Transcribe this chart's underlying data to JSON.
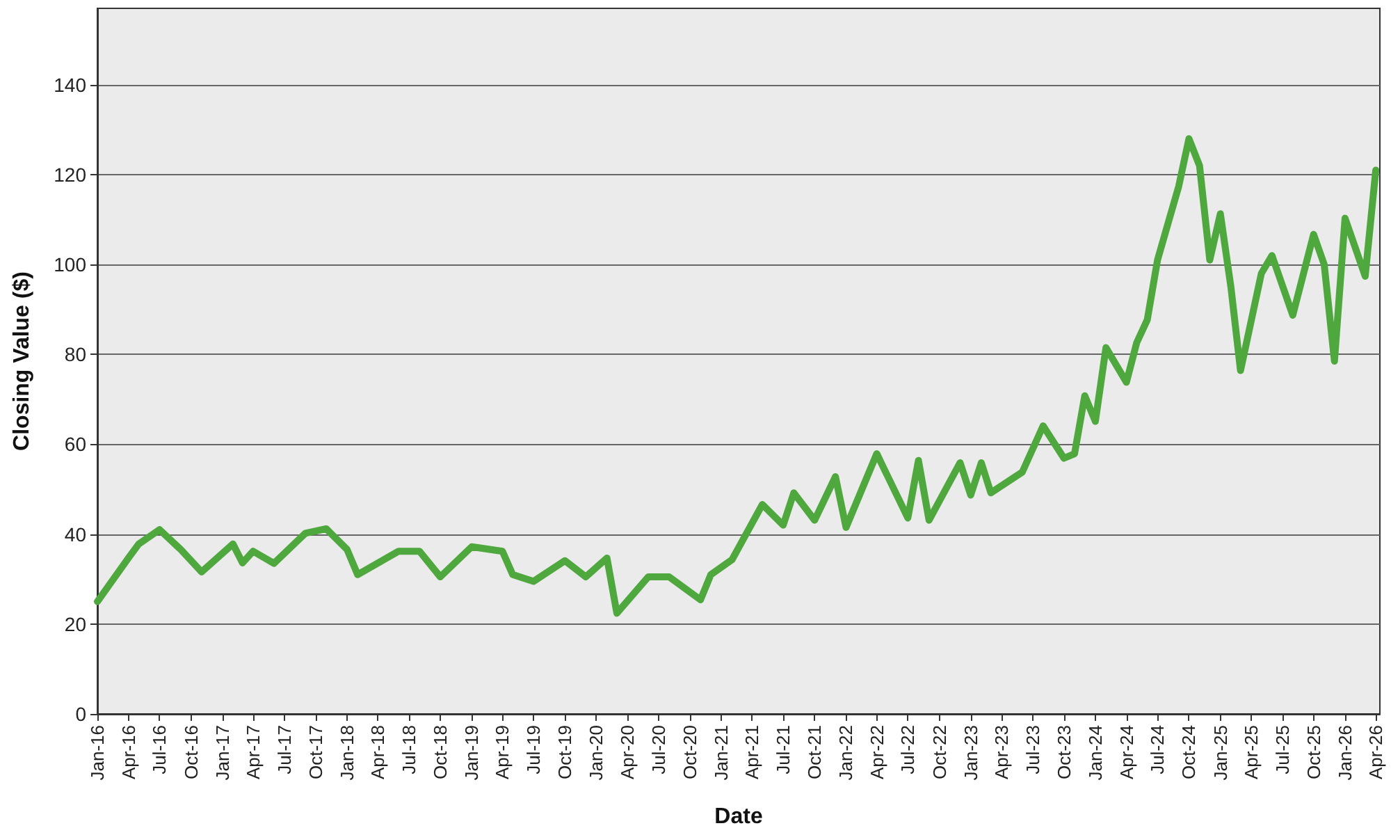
{
  "chart_data": {
    "type": "line",
    "xlabel": "Date",
    "ylabel": "Closing Value ($)",
    "grid": "y",
    "marker": "none",
    "line_style": "solid",
    "xlim": [
      "2016-01-01",
      "2026-04-13"
    ],
    "ylim": [
      0,
      157
    ],
    "yticks": [
      0,
      20,
      40,
      60,
      80,
      100,
      120,
      140
    ],
    "xticks": [
      {
        "value": "2016-01-01",
        "label": "Jan-16"
      },
      {
        "value": "2016-04-01",
        "label": "Apr-16"
      },
      {
        "value": "2016-07-01",
        "label": "Jul-16"
      },
      {
        "value": "2016-10-01",
        "label": "Oct-16"
      },
      {
        "value": "2017-01-01",
        "label": "Jan-17"
      },
      {
        "value": "2017-04-01",
        "label": "Apr-17"
      },
      {
        "value": "2017-07-01",
        "label": "Jul-17"
      },
      {
        "value": "2017-10-01",
        "label": "Oct-17"
      },
      {
        "value": "2018-01-01",
        "label": "Jan-18"
      },
      {
        "value": "2018-04-01",
        "label": "Apr-18"
      },
      {
        "value": "2018-07-01",
        "label": "Jul-18"
      },
      {
        "value": "2018-10-01",
        "label": "Oct-18"
      },
      {
        "value": "2019-01-01",
        "label": "Jan-19"
      },
      {
        "value": "2019-04-01",
        "label": "Apr-19"
      },
      {
        "value": "2019-07-01",
        "label": "Jul-19"
      },
      {
        "value": "2019-10-01",
        "label": "Oct-19"
      },
      {
        "value": "2020-01-01",
        "label": "Jan-20"
      },
      {
        "value": "2020-04-01",
        "label": "Apr-20"
      },
      {
        "value": "2020-07-01",
        "label": "Jul-20"
      },
      {
        "value": "2020-10-01",
        "label": "Oct-20"
      },
      {
        "value": "2021-01-01",
        "label": "Jan-21"
      },
      {
        "value": "2021-04-01",
        "label": "Apr-21"
      },
      {
        "value": "2021-07-01",
        "label": "Jul-21"
      },
      {
        "value": "2021-10-01",
        "label": "Oct-21"
      },
      {
        "value": "2022-01-01",
        "label": "Jan-22"
      },
      {
        "value": "2022-04-01",
        "label": "Apr-22"
      },
      {
        "value": "2022-07-01",
        "label": "Jul-22"
      },
      {
        "value": "2022-10-01",
        "label": "Oct-22"
      },
      {
        "value": "2023-01-01",
        "label": "Jan-23"
      },
      {
        "value": "2023-04-01",
        "label": "Apr-23"
      },
      {
        "value": "2023-07-01",
        "label": "Jul-23"
      },
      {
        "value": "2023-10-01",
        "label": "Oct-23"
      },
      {
        "value": "2024-01-01",
        "label": "Jan-24"
      },
      {
        "value": "2024-04-01",
        "label": "Apr-24"
      },
      {
        "value": "2024-07-01",
        "label": "Jul-24"
      },
      {
        "value": "2024-10-01",
        "label": "Oct-24"
      },
      {
        "value": "2025-01-01",
        "label": "Jan-25"
      },
      {
        "value": "2025-04-01",
        "label": "Apr-25"
      },
      {
        "value": "2025-07-01",
        "label": "Jul-25"
      },
      {
        "value": "2025-10-01",
        "label": "Oct-25"
      },
      {
        "value": "2026-01-01",
        "label": "Jan-26"
      },
      {
        "value": "2026-04-01",
        "label": "Apr-26"
      }
    ],
    "x": [
      "2016-01",
      "2016-04",
      "2016-05",
      "2016-07",
      "2016-09",
      "2016-11",
      "2017-02",
      "2017-03",
      "2017-04",
      "2017-06",
      "2017-09",
      "2017-11",
      "2018-01",
      "2018-02",
      "2018-06",
      "2018-08",
      "2018-10",
      "2019-01",
      "2019-04",
      "2019-05",
      "2019-07",
      "2019-10",
      "2019-12",
      "2020-02",
      "2020-03",
      "2020-06",
      "2020-08",
      "2020-11",
      "2020-12",
      "2021-02",
      "2021-05",
      "2021-07",
      "2021-08",
      "2021-10",
      "2021-12",
      "2022-01",
      "2022-04",
      "2022-07",
      "2022-08",
      "2022-09",
      "2022-12",
      "2023-01",
      "2023-02",
      "2023-03",
      "2023-06",
      "2023-08",
      "2023-10",
      "2023-11",
      "2023-12",
      "2024-01",
      "2024-02",
      "2024-04",
      "2024-05",
      "2024-06",
      "2024-07",
      "2024-08",
      "2024-09",
      "2024-10",
      "2024-11",
      "2024-12",
      "2025-01",
      "2025-02",
      "2025-03",
      "2025-05",
      "2025-06",
      "2025-08",
      "2025-10",
      "2025-11",
      "2025-12",
      "2026-01",
      "2026-03",
      "2026-04"
    ],
    "series": [
      {
        "color": "#4ea83d",
        "values": [
          25,
          34.7,
          37.8,
          41,
          36.6,
          31.6,
          37.8,
          33.6,
          36.2,
          33.5,
          40.2,
          41.2,
          36.6,
          31,
          36.2,
          36.2,
          30.5,
          37.2,
          36.2,
          31,
          29.5,
          34.1,
          30.5,
          34.7,
          22.4,
          30.5,
          30.5,
          25.4,
          31,
          34.3,
          46.6,
          42,
          49.2,
          43.1,
          52.8,
          41.5,
          57.9,
          43.6,
          56.4,
          43.1,
          55.9,
          48.7,
          55.9,
          49.2,
          53.8,
          64.1,
          56.9,
          57.9,
          70.8,
          65.1,
          81.5,
          73.8,
          82.6,
          87.7,
          101,
          109.2,
          117.4,
          128,
          122,
          101,
          111.3,
          94.9,
          76.4,
          98,
          102,
          88.7,
          106.7,
          100,
          78.5,
          110.3,
          97.4,
          121
        ]
      }
    ]
  }
}
